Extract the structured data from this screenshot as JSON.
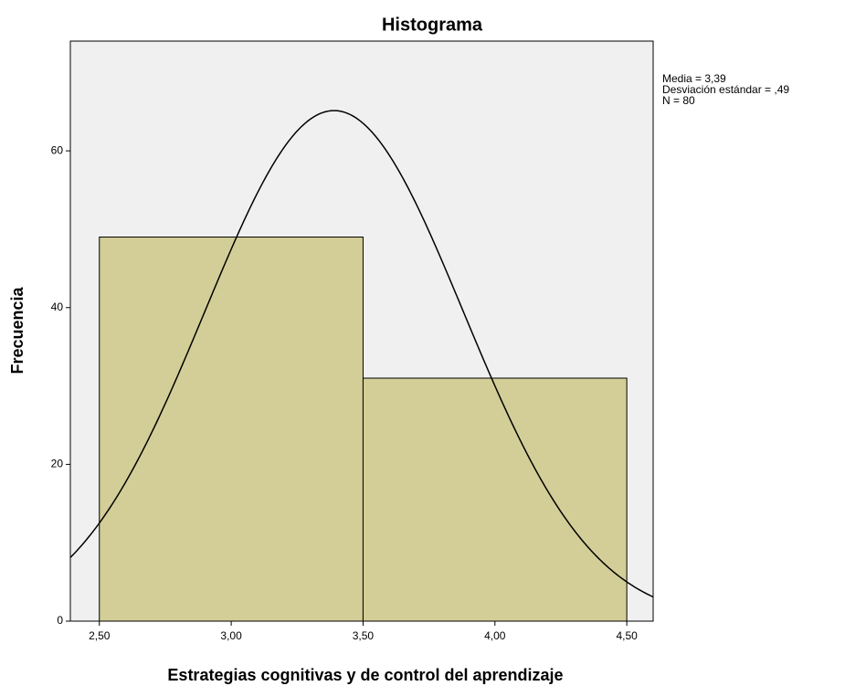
{
  "chart_data": {
    "type": "histogram",
    "title": "Histograma",
    "xlabel": "Estrategias cognitivas y de control del aprendizaje",
    "ylabel": "Frecuencia",
    "bins": [
      2.5,
      3.5,
      4.5
    ],
    "counts": [
      49,
      31
    ],
    "color": "#d3ce97",
    "xlim": [
      2.39,
      4.6
    ],
    "ylim": [
      0,
      74
    ],
    "xticks": [
      {
        "value": 2.5,
        "label": "2,50"
      },
      {
        "value": 3.0,
        "label": "3,00"
      },
      {
        "value": 3.5,
        "label": "3,50"
      },
      {
        "value": 4.0,
        "label": "4,00"
      },
      {
        "value": 4.5,
        "label": "4,50"
      }
    ],
    "yticks": [
      0,
      20,
      40,
      60
    ],
    "stats": [
      "Media = 3,39",
      "Desviación estándar = ,49",
      "N = 80"
    ],
    "curve": {
      "mean": 3.39,
      "sd": 0.49,
      "n": 80
    }
  }
}
